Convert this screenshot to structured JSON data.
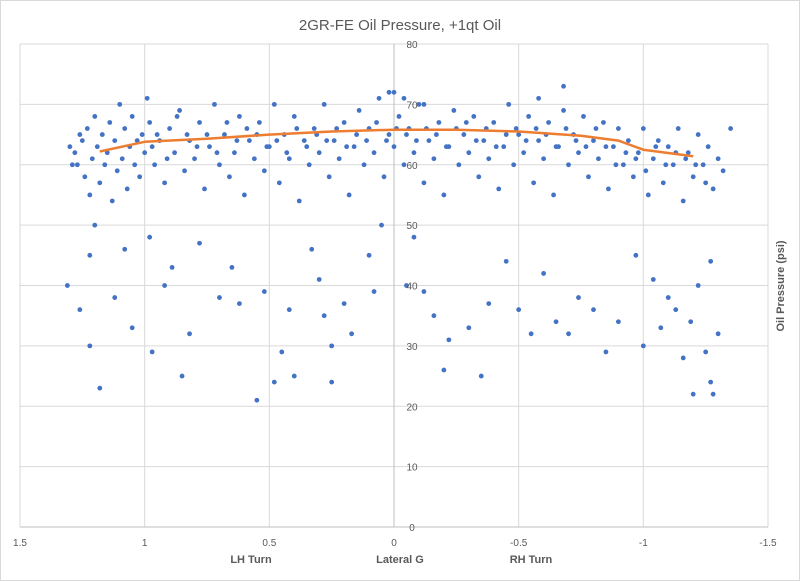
{
  "chart_data": {
    "type": "scatter",
    "title": "2GR-FE Oil Pressure, +1qt Oil",
    "xlabel": "Lateral G",
    "xlabel_left": "LH Turn",
    "xlabel_right": "RH Turn",
    "ylabel": "Oil Pressure (psi)",
    "xlim": [
      1.5,
      -1.5
    ],
    "x_reversed": true,
    "ylim": [
      0,
      80
    ],
    "x_ticks": [
      "1.5",
      "1",
      "0.5",
      "0",
      "-0.5",
      "-1",
      "-1.5"
    ],
    "x_tick_values": [
      1.5,
      1,
      0.5,
      0,
      -0.5,
      -1,
      -1.5
    ],
    "y_ticks": [
      "0",
      "10",
      "20",
      "30",
      "40",
      "50",
      "60",
      "70",
      "80"
    ],
    "y_tick_values": [
      0,
      10,
      20,
      30,
      40,
      50,
      60,
      70,
      80
    ],
    "grid": true,
    "legend": "none",
    "colors": {
      "points": "#4472C4",
      "trendline": "#ED7D31"
    },
    "series": [
      {
        "marker": "circle",
        "points": [
          [
            1.3,
            63
          ],
          [
            1.29,
            60
          ],
          [
            1.28,
            62
          ],
          [
            1.27,
            60
          ],
          [
            1.26,
            65
          ],
          [
            1.25,
            64
          ],
          [
            1.24,
            58
          ],
          [
            1.23,
            66
          ],
          [
            1.22,
            55
          ],
          [
            1.21,
            61
          ],
          [
            1.2,
            68
          ],
          [
            1.19,
            63
          ],
          [
            1.18,
            57
          ],
          [
            1.17,
            65
          ],
          [
            1.16,
            60
          ],
          [
            1.15,
            62
          ],
          [
            1.14,
            67
          ],
          [
            1.13,
            54
          ],
          [
            1.12,
            64
          ],
          [
            1.11,
            59
          ],
          [
            1.1,
            70
          ],
          [
            1.09,
            61
          ],
          [
            1.08,
            66
          ],
          [
            1.07,
            56
          ],
          [
            1.06,
            63
          ],
          [
            1.05,
            68
          ],
          [
            1.04,
            60
          ],
          [
            1.03,
            64
          ],
          [
            1.02,
            58
          ],
          [
            1.01,
            65
          ],
          [
            1.0,
            62
          ],
          [
            0.99,
            71
          ],
          [
            0.98,
            67
          ],
          [
            0.97,
            63
          ],
          [
            0.96,
            60
          ],
          [
            0.95,
            65
          ],
          [
            0.94,
            64
          ],
          [
            0.92,
            57
          ],
          [
            0.91,
            61
          ],
          [
            0.9,
            66
          ],
          [
            0.88,
            62
          ],
          [
            0.87,
            68
          ],
          [
            0.86,
            69
          ],
          [
            0.84,
            59
          ],
          [
            0.83,
            65
          ],
          [
            0.82,
            64
          ],
          [
            0.8,
            61
          ],
          [
            0.79,
            63
          ],
          [
            0.78,
            67
          ],
          [
            0.76,
            56
          ],
          [
            0.75,
            65
          ],
          [
            0.74,
            63
          ],
          [
            0.72,
            70
          ],
          [
            0.71,
            62
          ],
          [
            0.7,
            60
          ],
          [
            0.68,
            65
          ],
          [
            0.67,
            67
          ],
          [
            0.66,
            58
          ],
          [
            0.64,
            62
          ],
          [
            0.63,
            64
          ],
          [
            0.62,
            68
          ],
          [
            0.6,
            55
          ],
          [
            0.59,
            66
          ],
          [
            0.58,
            64
          ],
          [
            0.56,
            61
          ],
          [
            0.55,
            65
          ],
          [
            0.54,
            67
          ],
          [
            0.52,
            59
          ],
          [
            0.51,
            63
          ],
          [
            0.5,
            63
          ],
          [
            0.48,
            70
          ],
          [
            0.47,
            64
          ],
          [
            0.46,
            57
          ],
          [
            0.44,
            65
          ],
          [
            0.43,
            62
          ],
          [
            0.42,
            61
          ],
          [
            0.4,
            68
          ],
          [
            0.39,
            66
          ],
          [
            0.38,
            54
          ],
          [
            0.36,
            64
          ],
          [
            0.35,
            63
          ],
          [
            0.34,
            60
          ],
          [
            0.32,
            66
          ],
          [
            0.31,
            65
          ],
          [
            0.3,
            62
          ],
          [
            0.28,
            70
          ],
          [
            0.27,
            64
          ],
          [
            0.26,
            58
          ],
          [
            0.24,
            64
          ],
          [
            0.23,
            66
          ],
          [
            0.22,
            61
          ],
          [
            0.2,
            67
          ],
          [
            0.19,
            63
          ],
          [
            0.18,
            55
          ],
          [
            0.16,
            63
          ],
          [
            0.15,
            65
          ],
          [
            0.14,
            69
          ],
          [
            0.12,
            60
          ],
          [
            0.11,
            64
          ],
          [
            0.1,
            66
          ],
          [
            0.08,
            62
          ],
          [
            0.07,
            67
          ],
          [
            0.06,
            71
          ],
          [
            0.04,
            58
          ],
          [
            0.03,
            64
          ],
          [
            0.02,
            65
          ],
          [
            0.0,
            63
          ],
          [
            -0.01,
            66
          ],
          [
            -0.02,
            68
          ],
          [
            -0.04,
            60
          ],
          [
            -0.05,
            65
          ],
          [
            -0.06,
            66
          ],
          [
            -0.08,
            62
          ],
          [
            -0.09,
            64
          ],
          [
            -0.1,
            70
          ],
          [
            -0.12,
            57
          ],
          [
            -0.13,
            66
          ],
          [
            -0.14,
            64
          ],
          [
            -0.16,
            61
          ],
          [
            -0.17,
            65
          ],
          [
            -0.18,
            67
          ],
          [
            -0.2,
            55
          ],
          [
            -0.21,
            63
          ],
          [
            -0.22,
            63
          ],
          [
            -0.24,
            69
          ],
          [
            -0.25,
            66
          ],
          [
            -0.26,
            60
          ],
          [
            -0.28,
            65
          ],
          [
            -0.29,
            67
          ],
          [
            -0.3,
            62
          ],
          [
            -0.32,
            68
          ],
          [
            -0.33,
            64
          ],
          [
            -0.34,
            58
          ],
          [
            -0.36,
            64
          ],
          [
            -0.37,
            66
          ],
          [
            -0.38,
            61
          ],
          [
            -0.4,
            67
          ],
          [
            -0.41,
            63
          ],
          [
            -0.42,
            56
          ],
          [
            -0.44,
            63
          ],
          [
            -0.45,
            65
          ],
          [
            -0.46,
            70
          ],
          [
            -0.48,
            60
          ],
          [
            -0.49,
            66
          ],
          [
            -0.5,
            65
          ],
          [
            -0.52,
            62
          ],
          [
            -0.53,
            64
          ],
          [
            -0.54,
            68
          ],
          [
            -0.56,
            57
          ],
          [
            -0.57,
            66
          ],
          [
            -0.58,
            64
          ],
          [
            -0.6,
            61
          ],
          [
            -0.61,
            65
          ],
          [
            -0.62,
            67
          ],
          [
            -0.64,
            55
          ],
          [
            -0.65,
            63
          ],
          [
            -0.66,
            63
          ],
          [
            -0.68,
            69
          ],
          [
            -0.69,
            66
          ],
          [
            -0.7,
            60
          ],
          [
            -0.72,
            65
          ],
          [
            -0.73,
            64
          ],
          [
            -0.74,
            62
          ],
          [
            -0.76,
            68
          ],
          [
            -0.77,
            63
          ],
          [
            -0.78,
            58
          ],
          [
            -0.8,
            64
          ],
          [
            -0.81,
            66
          ],
          [
            -0.82,
            61
          ],
          [
            -0.84,
            67
          ],
          [
            -0.85,
            63
          ],
          [
            -0.86,
            56
          ],
          [
            -0.88,
            63
          ],
          [
            -0.89,
            60
          ],
          [
            -0.9,
            66
          ],
          [
            -0.92,
            60
          ],
          [
            -0.93,
            62
          ],
          [
            -0.94,
            64
          ],
          [
            -0.96,
            58
          ],
          [
            -0.97,
            61
          ],
          [
            -0.98,
            62
          ],
          [
            -1.0,
            66
          ],
          [
            -1.01,
            59
          ],
          [
            -1.02,
            55
          ],
          [
            -1.04,
            61
          ],
          [
            -1.05,
            63
          ],
          [
            -1.06,
            64
          ],
          [
            -1.08,
            57
          ],
          [
            -1.09,
            60
          ],
          [
            -1.1,
            63
          ],
          [
            -1.12,
            60
          ],
          [
            -1.13,
            62
          ],
          [
            -1.14,
            66
          ],
          [
            -1.16,
            54
          ],
          [
            -1.17,
            61
          ],
          [
            -1.18,
            62
          ],
          [
            -1.2,
            58
          ],
          [
            -1.21,
            60
          ],
          [
            -1.22,
            65
          ],
          [
            -1.24,
            60
          ],
          [
            -1.25,
            57
          ],
          [
            -1.26,
            63
          ],
          [
            -1.28,
            56
          ],
          [
            -1.3,
            61
          ],
          [
            -1.32,
            59
          ],
          [
            -1.35,
            66
          ],
          [
            1.31,
            40
          ],
          [
            1.26,
            36
          ],
          [
            1.22,
            45
          ],
          [
            1.2,
            50
          ],
          [
            1.12,
            38
          ],
          [
            1.08,
            46
          ],
          [
            1.05,
            33
          ],
          [
            0.98,
            48
          ],
          [
            0.97,
            29
          ],
          [
            0.92,
            40
          ],
          [
            0.89,
            43
          ],
          [
            0.82,
            32
          ],
          [
            0.78,
            47
          ],
          [
            0.7,
            38
          ],
          [
            0.65,
            43
          ],
          [
            0.62,
            37
          ],
          [
            0.52,
            39
          ],
          [
            0.45,
            29
          ],
          [
            0.42,
            36
          ],
          [
            0.33,
            46
          ],
          [
            0.3,
            41
          ],
          [
            0.28,
            35
          ],
          [
            0.2,
            37
          ],
          [
            0.17,
            32
          ],
          [
            0.1,
            45
          ],
          [
            0.08,
            39
          ],
          [
            0.05,
            50
          ],
          [
            -0.05,
            40
          ],
          [
            -0.08,
            48
          ],
          [
            -0.12,
            39
          ],
          [
            -0.16,
            35
          ],
          [
            -0.22,
            31
          ],
          [
            -0.3,
            33
          ],
          [
            -0.38,
            37
          ],
          [
            -0.45,
            44
          ],
          [
            -0.5,
            36
          ],
          [
            -0.55,
            32
          ],
          [
            -0.6,
            42
          ],
          [
            -0.65,
            34
          ],
          [
            -0.7,
            32
          ],
          [
            -0.74,
            38
          ],
          [
            -0.8,
            36
          ],
          [
            -0.85,
            29
          ],
          [
            -0.9,
            34
          ],
          [
            -0.97,
            45
          ],
          [
            -1.0,
            30
          ],
          [
            -1.04,
            41
          ],
          [
            -1.07,
            33
          ],
          [
            -1.1,
            38
          ],
          [
            -1.13,
            36
          ],
          [
            -1.16,
            28
          ],
          [
            -1.19,
            34
          ],
          [
            -1.22,
            40
          ],
          [
            -1.25,
            29
          ],
          [
            -1.27,
            44
          ],
          [
            -1.3,
            32
          ],
          [
            1.18,
            23
          ],
          [
            1.22,
            30
          ],
          [
            0.85,
            25
          ],
          [
            0.55,
            21
          ],
          [
            0.48,
            24
          ],
          [
            0.4,
            25
          ],
          [
            0.25,
            30
          ],
          [
            0.25,
            24
          ],
          [
            -0.2,
            26
          ],
          [
            -0.35,
            25
          ],
          [
            -1.2,
            22
          ],
          [
            -1.27,
            24
          ],
          [
            -1.28,
            22
          ],
          [
            0.02,
            72
          ],
          [
            0.0,
            72
          ],
          [
            -0.58,
            71
          ],
          [
            -0.68,
            73
          ],
          [
            -0.04,
            71
          ],
          [
            -0.12,
            70
          ]
        ]
      }
    ],
    "trendline": {
      "points": [
        [
          1.18,
          62.2
        ],
        [
          1.0,
          63.8
        ],
        [
          0.75,
          64.3
        ],
        [
          0.5,
          65.0
        ],
        [
          0.25,
          65.5
        ],
        [
          0.0,
          65.8
        ],
        [
          -0.25,
          65.8
        ],
        [
          -0.5,
          65.5
        ],
        [
          -0.75,
          64.8
        ],
        [
          -0.9,
          64.0
        ],
        [
          -1.0,
          62.5
        ],
        [
          -1.2,
          61.4
        ]
      ]
    }
  }
}
